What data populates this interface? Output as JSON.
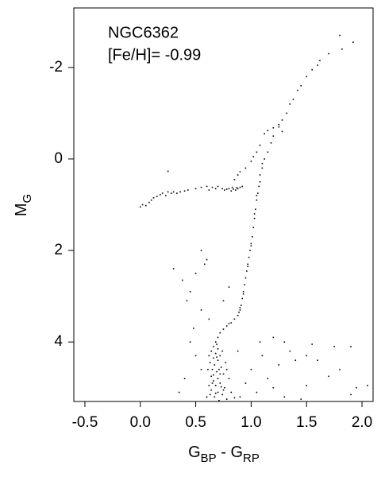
{
  "chart_data": {
    "type": "scatter",
    "annotations": [
      "NGC6362",
      "[Fe/H]= -0.99"
    ],
    "xlabel": {
      "main": "G",
      "sub1": "BP",
      "mid": " - G",
      "sub2": "RP"
    },
    "ylabel": {
      "main": "M",
      "sub": "G"
    },
    "color": "#000000",
    "xlim": [
      -0.6,
      2.1
    ],
    "ylim": [
      5.3,
      -3.3
    ],
    "xticks": [
      -0.5,
      {
        "value": 0,
        "label": "0.0"
      },
      0.5,
      {
        "value": 1,
        "label": "1.0"
      },
      1.5,
      {
        "value": 2,
        "label": "2.0"
      }
    ],
    "yticks": [
      -2,
      0,
      2,
      4
    ],
    "x": [
      0.0,
      0.02,
      0.05,
      0.08,
      0.1,
      0.12,
      0.15,
      0.18,
      0.2,
      0.23,
      0.25,
      0.28,
      0.3,
      0.33,
      0.36,
      0.4,
      0.43,
      0.5,
      0.55,
      0.6,
      0.62,
      0.65,
      0.68,
      0.7,
      0.74,
      0.76,
      0.78,
      0.8,
      0.82,
      0.84,
      0.86,
      0.88,
      0.9,
      0.92,
      0.87,
      0.83,
      0.25,
      0.85,
      0.88,
      0.9,
      0.95,
      1.0,
      1.02,
      1.05,
      1.08,
      1.12,
      1.15,
      1.2,
      1.25,
      1.28,
      1.8,
      1.92,
      1.82,
      1.7,
      1.62,
      1.6,
      1.55,
      1.5,
      1.45,
      1.42,
      1.38,
      1.35,
      1.32,
      1.28,
      1.25,
      1.2,
      1.18,
      1.15,
      1.12,
      1.1,
      1.08,
      1.08,
      1.07,
      1.06,
      1.05,
      1.04,
      1.03,
      1.02,
      1.01,
      1.0,
      0.99,
      0.98,
      0.97,
      0.96,
      0.95,
      0.94,
      0.93,
      0.92,
      0.91,
      0.9,
      0.88,
      0.85,
      0.82,
      0.78,
      0.75,
      0.72,
      0.7,
      0.68,
      1.05,
      1.03,
      1.0,
      0.97,
      0.93,
      0.9,
      1.1,
      0.89,
      0.8,
      0.66,
      0.7,
      0.64,
      0.68,
      0.72,
      0.66,
      0.7,
      0.63,
      0.67,
      0.73,
      0.65,
      0.69,
      0.75,
      0.64,
      0.7,
      0.66,
      0.72,
      0.68,
      0.76,
      0.64,
      0.7,
      0.74,
      0.67,
      0.78,
      0.71,
      0.62,
      0.74,
      0.77,
      0.61,
      0.8,
      0.62,
      0.82,
      0.6,
      0.85,
      0.69,
      0.71,
      0.73,
      0.68,
      0.75,
      0.65,
      0.78,
      0.72,
      0.66,
      0.69,
      0.63,
      0.55,
      0.6,
      0.3,
      0.38,
      0.5,
      0.45,
      0.42,
      0.55,
      0.62,
      0.48,
      0.8,
      0.75,
      0.58,
      1.2,
      1.3,
      1.4,
      1.35,
      1.5,
      1.6,
      1.8,
      1.95,
      2.05,
      1.9,
      1.7,
      1.1,
      1.0,
      0.95,
      1.05,
      1.2,
      1.15,
      1.3,
      1.45,
      0.9,
      0.55,
      0.5,
      0.45,
      0.35,
      0.4,
      1.9,
      1.75,
      1.55,
      1.25,
      0.88,
      1.08,
      1.5
    ],
    "values": [
      1.05,
      1.0,
      1.02,
      0.95,
      0.9,
      0.85,
      0.82,
      0.78,
      0.75,
      0.8,
      0.72,
      0.75,
      0.72,
      0.75,
      0.72,
      0.7,
      0.68,
      0.65,
      0.62,
      0.6,
      0.68,
      0.62,
      0.65,
      0.6,
      0.65,
      0.68,
      0.66,
      0.65,
      0.7,
      0.66,
      0.68,
      0.65,
      0.62,
      0.6,
      0.63,
      0.62,
      0.27,
      0.45,
      0.35,
      0.28,
      0.2,
      0.05,
      -0.05,
      -0.15,
      -0.3,
      -0.55,
      -0.62,
      -0.68,
      -0.7,
      -0.6,
      -2.7,
      -2.55,
      -2.4,
      -2.3,
      -2.15,
      -2.05,
      -1.95,
      -1.8,
      -1.6,
      -1.5,
      -1.3,
      -1.2,
      -1.0,
      -0.85,
      -0.75,
      -0.5,
      -0.35,
      -0.15,
      0.0,
      0.2,
      0.35,
      0.5,
      0.6,
      0.75,
      0.9,
      1.1,
      1.3,
      1.5,
      1.7,
      1.85,
      2.0,
      2.15,
      2.3,
      2.45,
      2.6,
      2.75,
      2.9,
      3.05,
      3.2,
      3.3,
      3.42,
      3.5,
      3.58,
      3.65,
      3.72,
      3.8,
      3.9,
      4.0,
      0.8,
      1.2,
      1.9,
      2.35,
      2.95,
      3.25,
      0.1,
      3.35,
      3.6,
      4.1,
      4.15,
      4.2,
      4.25,
      4.3,
      4.35,
      4.4,
      4.45,
      4.5,
      4.55,
      4.6,
      4.65,
      4.7,
      4.75,
      4.8,
      4.85,
      4.9,
      4.95,
      5.0,
      5.05,
      5.1,
      5.15,
      5.2,
      5.25,
      5.28,
      4.3,
      4.2,
      4.45,
      4.6,
      4.8,
      4.95,
      5.1,
      5.2,
      5.22,
      4.05,
      4.6,
      4.98,
      5.12,
      5.05,
      4.9,
      4.6,
      4.7,
      4.72,
      4.33,
      5.15,
      2.0,
      2.2,
      2.4,
      2.65,
      2.5,
      2.9,
      3.1,
      3.3,
      3.5,
      3.7,
      2.8,
      3.1,
      2.3,
      3.9,
      4.0,
      4.4,
      4.2,
      4.3,
      4.4,
      4.6,
      5.0,
      4.95,
      5.15,
      4.75,
      4.3,
      4.6,
      4.9,
      5.1,
      5.0,
      4.8,
      5.2,
      5.25,
      5.2,
      4.6,
      4.3,
      4.0,
      5.1,
      4.8,
      4.1,
      4.1,
      4.05,
      4.5,
      4.2,
      4.0,
      4.95
    ]
  }
}
